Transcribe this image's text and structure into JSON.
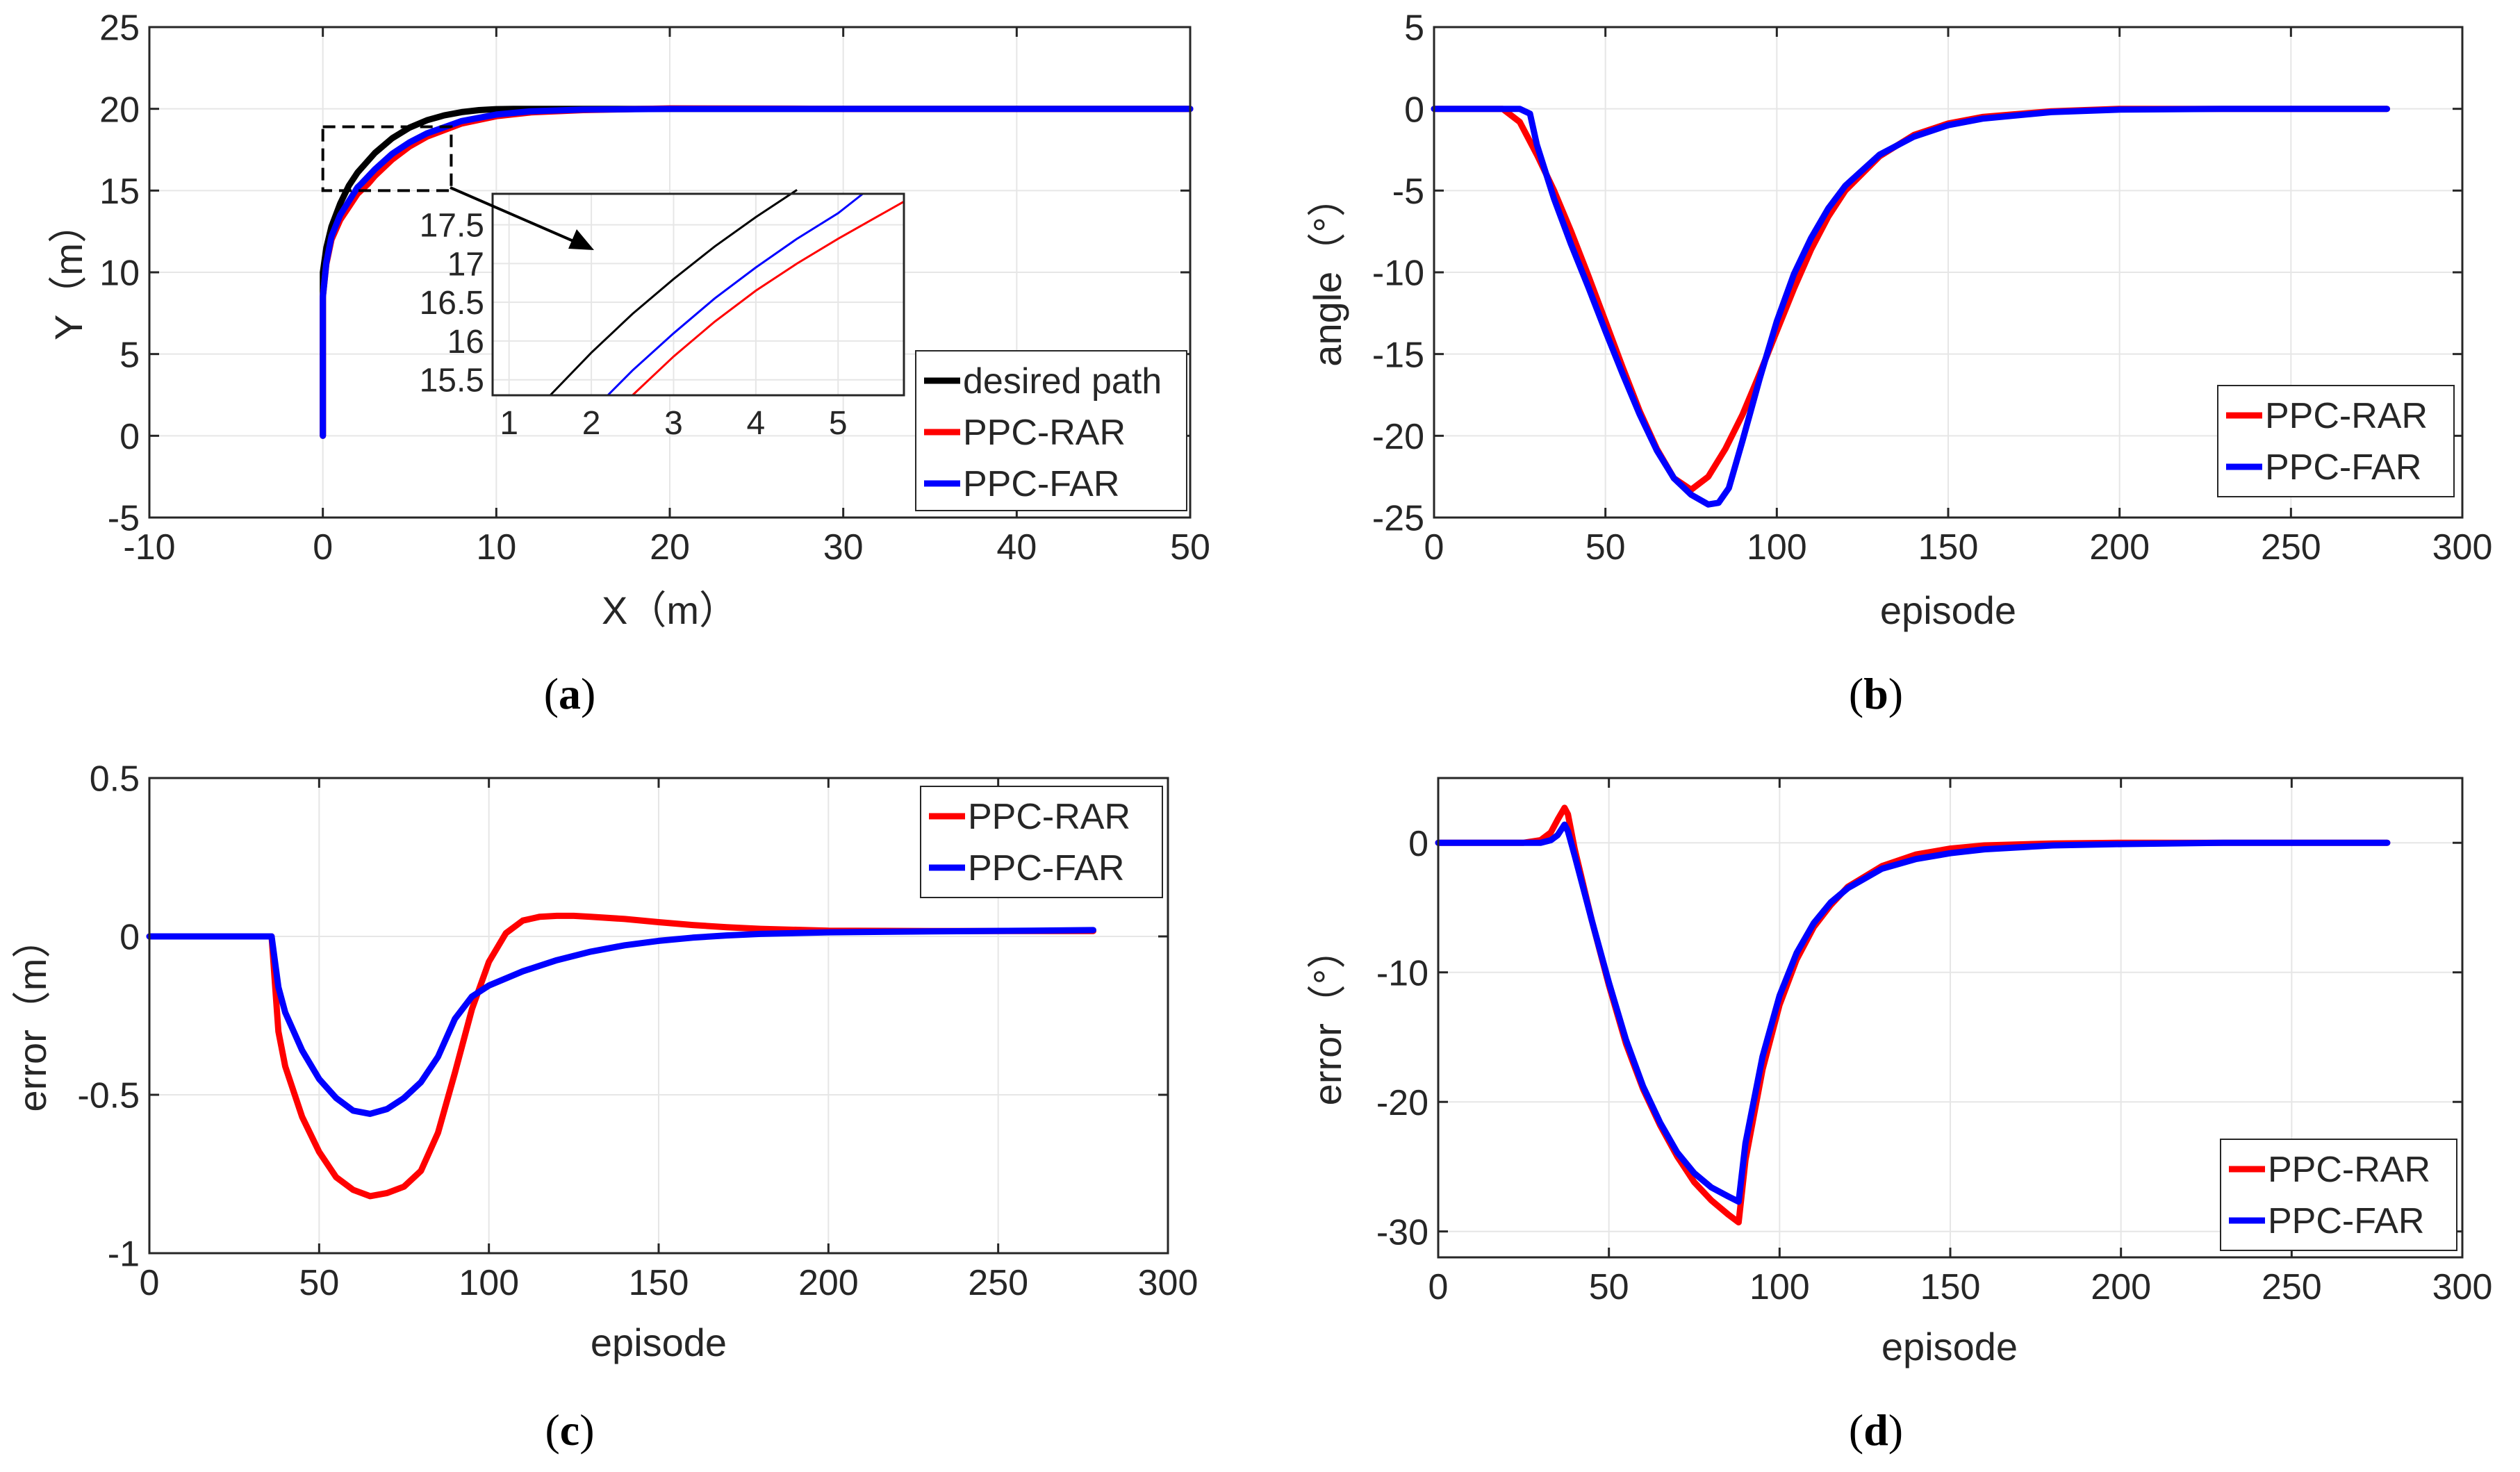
{
  "colors": {
    "desired": "#000000",
    "rar": "#ff0000",
    "far": "#0000ff",
    "grid": "#e6e6e6",
    "axis": "#262626"
  },
  "chart_data": [
    {
      "id": "a",
      "type": "line",
      "caption": "(a)",
      "caption_letter": "a",
      "xlabel": "X（m）",
      "ylabel": "Y（m）",
      "xlim": [
        -10,
        50
      ],
      "ylim": [
        -5,
        25
      ],
      "xticks": [
        -10,
        0,
        10,
        20,
        30,
        40,
        50
      ],
      "yticks": [
        -5,
        0,
        5,
        10,
        15,
        20,
        25
      ],
      "grid": true,
      "legend": "bottom-right",
      "series": [
        {
          "name": "desired path",
          "color": "#000000",
          "x": [
            0,
            0,
            0.2,
            0.5,
            1,
            1.5,
            2,
            3,
            4,
            5,
            6,
            7,
            8,
            9,
            10,
            11,
            12,
            15,
            20,
            30,
            40,
            50
          ],
          "y": [
            0,
            10,
            11.5,
            12.8,
            14.2,
            15.3,
            16.1,
            17.3,
            18.2,
            18.85,
            19.3,
            19.6,
            19.8,
            19.92,
            19.98,
            20,
            20,
            20,
            20,
            20,
            20,
            20
          ]
        },
        {
          "name": "PPC-RAR",
          "color": "#ff0000",
          "x": [
            0,
            0,
            0.2,
            0.5,
            1,
            2,
            2.6,
            3,
            4,
            5,
            6,
            8,
            10,
            12,
            15,
            20,
            25,
            30,
            40,
            50
          ],
          "y": [
            0,
            8.5,
            10.5,
            12,
            13.2,
            14.8,
            15.4,
            15.9,
            16.9,
            17.7,
            18.3,
            19.1,
            19.55,
            19.78,
            19.92,
            20.03,
            20.02,
            20,
            20,
            20
          ]
        },
        {
          "name": "PPC-FAR",
          "color": "#0000ff",
          "x": [
            0,
            0,
            0.2,
            0.5,
            1,
            2,
            2.2,
            3,
            4,
            5,
            6,
            8,
            10,
            12,
            15,
            20,
            30,
            40,
            50
          ],
          "y": [
            0,
            8.5,
            10.6,
            12.2,
            13.5,
            15.2,
            15.4,
            16.3,
            17.25,
            17.95,
            18.5,
            19.25,
            19.65,
            19.85,
            19.95,
            20,
            20,
            20,
            20
          ]
        }
      ],
      "inset": {
        "xlim": [
          0.8,
          5.8
        ],
        "ylim": [
          15.3,
          17.9
        ],
        "xticks": [
          1,
          2,
          3,
          4,
          5
        ],
        "yticks": [
          15.5,
          16,
          16.5,
          17,
          17.5
        ],
        "ytick_labels": [
          "15.5",
          "16",
          "16.5",
          "17",
          "17.5"
        ],
        "series": [
          {
            "name": "desired path",
            "color": "#000000",
            "x": [
              1.5,
              2,
              2.5,
              3,
              3.5,
              4,
              4.5
            ],
            "y": [
              15.3,
              15.85,
              16.35,
              16.8,
              17.22,
              17.6,
              17.95
            ]
          },
          {
            "name": "PPC-FAR",
            "color": "#0000ff",
            "x": [
              2.2,
              2.5,
              3,
              3.5,
              4,
              4.5,
              5,
              5.3
            ],
            "y": [
              15.3,
              15.62,
              16.1,
              16.55,
              16.95,
              17.32,
              17.65,
              17.9
            ]
          },
          {
            "name": "PPC-RAR",
            "color": "#ff0000",
            "x": [
              2.5,
              3,
              3.5,
              4,
              4.5,
              5,
              5.5,
              5.8
            ],
            "y": [
              15.3,
              15.8,
              16.25,
              16.65,
              17.0,
              17.32,
              17.62,
              17.8
            ]
          }
        ]
      }
    },
    {
      "id": "b",
      "type": "line",
      "caption": "(b)",
      "caption_letter": "b",
      "xlabel": "episode",
      "ylabel": "angle（°）",
      "xlim": [
        0,
        300
      ],
      "ylim": [
        -25,
        5
      ],
      "xticks": [
        0,
        50,
        100,
        150,
        200,
        250,
        300
      ],
      "yticks": [
        -25,
        -20,
        -15,
        -10,
        -5,
        0,
        5
      ],
      "grid": true,
      "legend": "bottom-right",
      "series": [
        {
          "name": "PPC-RAR",
          "color": "#ff0000",
          "x": [
            0,
            20,
            25,
            30,
            35,
            40,
            45,
            50,
            55,
            60,
            65,
            70,
            75,
            80,
            85,
            90,
            95,
            100,
            105,
            110,
            115,
            120,
            130,
            140,
            150,
            160,
            180,
            200,
            230,
            260,
            278
          ],
          "y": [
            0,
            0,
            -0.8,
            -2.8,
            -5,
            -7.5,
            -10.2,
            -13,
            -15.8,
            -18.5,
            -20.8,
            -22.6,
            -23.3,
            -22.5,
            -20.8,
            -18.7,
            -16.2,
            -13.6,
            -11,
            -8.6,
            -6.6,
            -5,
            -2.9,
            -1.6,
            -0.9,
            -0.5,
            -0.15,
            0,
            0,
            0,
            0
          ]
        },
        {
          "name": "PPC-FAR",
          "color": "#0000ff",
          "x": [
            0,
            25,
            28,
            30,
            35,
            40,
            45,
            50,
            55,
            60,
            65,
            70,
            75,
            80,
            83,
            86,
            90,
            95,
            100,
            105,
            110,
            115,
            120,
            130,
            140,
            150,
            160,
            180,
            200,
            230,
            260,
            278
          ],
          "y": [
            0,
            0,
            -0.3,
            -2.2,
            -5.5,
            -8.3,
            -10.9,
            -13.6,
            -16.2,
            -18.7,
            -20.9,
            -22.6,
            -23.6,
            -24.2,
            -24.1,
            -23.2,
            -20.3,
            -16.5,
            -13,
            -10.1,
            -7.9,
            -6.1,
            -4.7,
            -2.8,
            -1.7,
            -1,
            -0.6,
            -0.2,
            -0.05,
            0,
            0,
            0
          ]
        }
      ]
    },
    {
      "id": "c",
      "type": "line",
      "caption": "(c)",
      "caption_letter": "c",
      "xlabel": "episode",
      "ylabel": "error（m）",
      "xlim": [
        0,
        300
      ],
      "ylim": [
        -1,
        0.5
      ],
      "xticks": [
        0,
        50,
        100,
        150,
        200,
        250,
        300
      ],
      "yticks": [
        -1,
        -0.5,
        0,
        0.5
      ],
      "ytick_labels": [
        "-1",
        "-0.5",
        "0",
        "0.5"
      ],
      "grid": true,
      "legend": "top-right",
      "series": [
        {
          "name": "PPC-RAR",
          "color": "#ff0000",
          "x": [
            0,
            36,
            37,
            38,
            40,
            45,
            50,
            55,
            60,
            65,
            70,
            75,
            80,
            85,
            90,
            95,
            100,
            105,
            110,
            115,
            120,
            125,
            130,
            140,
            150,
            160,
            170,
            180,
            200,
            230,
            260,
            278
          ],
          "y": [
            0,
            0,
            -0.15,
            -0.3,
            -0.41,
            -0.57,
            -0.68,
            -0.76,
            -0.8,
            -0.82,
            -0.81,
            -0.79,
            -0.74,
            -0.62,
            -0.43,
            -0.23,
            -0.08,
            0.01,
            0.05,
            0.062,
            0.065,
            0.065,
            0.062,
            0.055,
            0.045,
            0.036,
            0.029,
            0.024,
            0.018,
            0.017,
            0.017,
            0.017
          ]
        },
        {
          "name": "PPC-FAR",
          "color": "#0000ff",
          "x": [
            0,
            36,
            37,
            38,
            40,
            45,
            50,
            55,
            60,
            65,
            70,
            75,
            80,
            85,
            90,
            95,
            100,
            110,
            120,
            130,
            140,
            150,
            160,
            170,
            180,
            200,
            230,
            260,
            278
          ],
          "y": [
            0,
            0,
            -0.08,
            -0.16,
            -0.24,
            -0.36,
            -0.45,
            -0.51,
            -0.55,
            -0.56,
            -0.545,
            -0.51,
            -0.46,
            -0.38,
            -0.26,
            -0.19,
            -0.155,
            -0.11,
            -0.075,
            -0.048,
            -0.028,
            -0.014,
            -0.004,
            0.003,
            0.008,
            0.013,
            0.016,
            0.018,
            0.02
          ]
        }
      ]
    },
    {
      "id": "d",
      "type": "line",
      "caption": "(d)",
      "caption_letter": "d",
      "xlabel": "episode",
      "ylabel": "error（°）",
      "xlim": [
        0,
        300
      ],
      "ylim": [
        -32,
        5
      ],
      "xticks": [
        0,
        50,
        100,
        150,
        200,
        250,
        300
      ],
      "yticks": [
        -30,
        -20,
        -10,
        0
      ],
      "grid": true,
      "legend": "bottom-right",
      "series": [
        {
          "name": "PPC-RAR",
          "color": "#ff0000",
          "x": [
            0,
            25,
            30,
            33,
            35,
            37,
            38,
            40,
            45,
            50,
            55,
            60,
            65,
            70,
            75,
            80,
            85,
            88,
            90,
            95,
            100,
            105,
            110,
            115,
            120,
            130,
            140,
            150,
            160,
            180,
            200,
            230,
            260,
            278
          ],
          "y": [
            0,
            0,
            0.2,
            0.8,
            1.8,
            2.7,
            2.2,
            -0.5,
            -6,
            -11,
            -15.5,
            -19,
            -21.8,
            -24.2,
            -26.2,
            -27.6,
            -28.7,
            -29.3,
            -24.5,
            -17.5,
            -12.5,
            -9,
            -6.5,
            -4.8,
            -3.4,
            -1.8,
            -0.9,
            -0.45,
            -0.2,
            -0.05,
            0,
            0,
            0,
            0
          ]
        },
        {
          "name": "PPC-FAR",
          "color": "#0000ff",
          "x": [
            0,
            30,
            33,
            35,
            37,
            38,
            40,
            45,
            50,
            55,
            60,
            65,
            70,
            75,
            80,
            85,
            88,
            90,
            95,
            100,
            105,
            110,
            115,
            120,
            130,
            140,
            150,
            160,
            180,
            200,
            230,
            260,
            278
          ],
          "y": [
            0,
            0,
            0.2,
            0.6,
            1.4,
            0.9,
            -1,
            -6,
            -10.8,
            -15.2,
            -18.8,
            -21.6,
            -23.9,
            -25.5,
            -26.6,
            -27.3,
            -27.7,
            -23.2,
            -16.5,
            -11.8,
            -8.5,
            -6.2,
            -4.6,
            -3.5,
            -2,
            -1.25,
            -0.8,
            -0.5,
            -0.2,
            -0.1,
            0,
            0,
            0
          ]
        }
      ]
    }
  ]
}
